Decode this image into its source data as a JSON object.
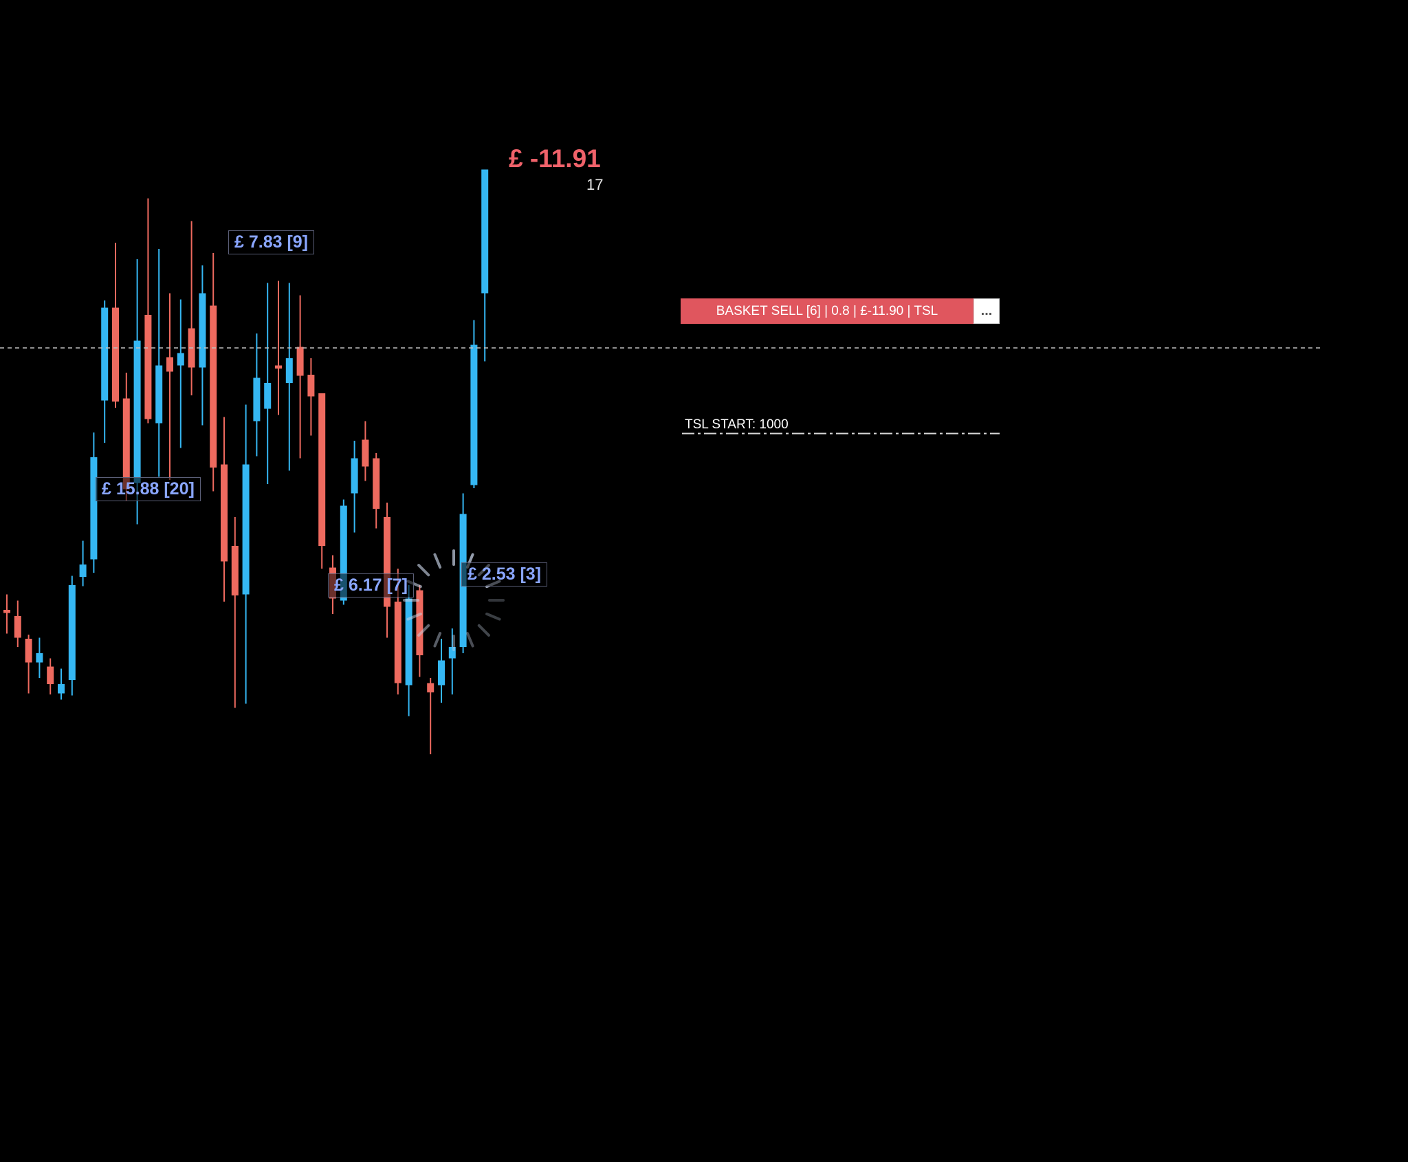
{
  "colors": {
    "background": "#000000",
    "bull": "#35b7f3",
    "bear": "#ee6a5f",
    "pnl_negative": "#f0626a",
    "basket_sell": "#e0565e",
    "profit_label_text": "#8aa6ff"
  },
  "pnl": {
    "value": "£ -11.91",
    "count": "17"
  },
  "basket": {
    "label": "BASKET SELL [6] | 0.8 | £-11.90 | TSL",
    "more": "..."
  },
  "tsl": {
    "label": "TSL START: 1000"
  },
  "profit_labels": [
    "£ 15.88 [20]",
    "£ 7.83 [9]",
    "£ 6.17 [7]",
    "£ 2.53 [3]"
  ],
  "loading_indicator": "spinner-icon",
  "chart_data": {
    "type": "candlestick",
    "y_axis_labels": "none",
    "candles": [
      {
        "o": 5.95,
        "c": 6.1,
        "h": 6.85,
        "l": 4.95,
        "dir": "bear"
      },
      {
        "o": 5.8,
        "c": 4.75,
        "h": 6.55,
        "l": 4.3,
        "dir": "bear"
      },
      {
        "o": 4.7,
        "c": 3.55,
        "h": 4.9,
        "l": 2.05,
        "dir": "bear"
      },
      {
        "o": 4.0,
        "c": 3.55,
        "h": 4.75,
        "l": 2.8,
        "dir": "bull"
      },
      {
        "o": 2.5,
        "c": 3.35,
        "h": 3.75,
        "l": 2.0,
        "dir": "bear"
      },
      {
        "o": 2.05,
        "c": 2.5,
        "h": 3.25,
        "l": 1.75,
        "dir": "bull"
      },
      {
        "o": 2.7,
        "c": 7.3,
        "h": 7.75,
        "l": 1.95,
        "dir": "bull"
      },
      {
        "o": 7.7,
        "c": 8.3,
        "h": 9.45,
        "l": 7.25,
        "dir": "bull"
      },
      {
        "o": 8.55,
        "c": 13.5,
        "h": 14.7,
        "l": 7.9,
        "dir": "bull"
      },
      {
        "o": 16.25,
        "c": 20.75,
        "h": 21.1,
        "l": 14.2,
        "dir": "bull"
      },
      {
        "o": 20.75,
        "c": 16.2,
        "h": 23.9,
        "l": 15.9,
        "dir": "bear"
      },
      {
        "o": 16.35,
        "c": 11.95,
        "h": 17.6,
        "l": 11.4,
        "dir": "bear"
      },
      {
        "o": 12.25,
        "c": 19.15,
        "h": 23.1,
        "l": 10.25,
        "dir": "bull"
      },
      {
        "o": 20.4,
        "c": 15.35,
        "h": 26.05,
        "l": 15.15,
        "dir": "bear"
      },
      {
        "o": 15.15,
        "c": 17.95,
        "h": 23.6,
        "l": 12.55,
        "dir": "bull"
      },
      {
        "o": 17.65,
        "c": 18.35,
        "h": 21.45,
        "l": 12.4,
        "dir": "bear"
      },
      {
        "o": 18.55,
        "c": 17.95,
        "h": 21.15,
        "l": 13.95,
        "dir": "bull"
      },
      {
        "o": 19.75,
        "c": 17.85,
        "h": 24.95,
        "l": 16.5,
        "dir": "bear"
      },
      {
        "o": 17.85,
        "c": 21.45,
        "h": 22.8,
        "l": 15.05,
        "dir": "bull"
      },
      {
        "o": 20.85,
        "c": 13.0,
        "h": 23.4,
        "l": 11.85,
        "dir": "bear"
      },
      {
        "o": 13.15,
        "c": 8.45,
        "h": 15.45,
        "l": 6.5,
        "dir": "bear"
      },
      {
        "o": 9.2,
        "c": 6.8,
        "h": 10.6,
        "l": 1.35,
        "dir": "bear"
      },
      {
        "o": 6.85,
        "c": 13.15,
        "h": 16.05,
        "l": 1.55,
        "dir": "bull"
      },
      {
        "o": 15.25,
        "c": 17.35,
        "h": 19.5,
        "l": 13.55,
        "dir": "bull"
      },
      {
        "o": 15.85,
        "c": 17.1,
        "h": 21.95,
        "l": 12.2,
        "dir": "bull"
      },
      {
        "o": 17.8,
        "c": 17.95,
        "h": 22.05,
        "l": 15.55,
        "dir": "bear"
      },
      {
        "o": 17.1,
        "c": 18.3,
        "h": 21.95,
        "l": 12.85,
        "dir": "bull"
      },
      {
        "o": 18.85,
        "c": 17.45,
        "h": 21.35,
        "l": 13.45,
        "dir": "bear"
      },
      {
        "o": 17.5,
        "c": 16.45,
        "h": 18.3,
        "l": 14.55,
        "dir": "bear"
      },
      {
        "o": 16.6,
        "c": 9.2,
        "h": 16.6,
        "l": 8.1,
        "dir": "bear"
      },
      {
        "o": 8.15,
        "c": 6.65,
        "h": 8.75,
        "l": 5.9,
        "dir": "bear"
      },
      {
        "o": 6.55,
        "c": 11.15,
        "h": 11.45,
        "l": 6.35,
        "dir": "bull"
      },
      {
        "o": 11.75,
        "c": 13.45,
        "h": 14.3,
        "l": 9.85,
        "dir": "bull"
      },
      {
        "o": 14.35,
        "c": 13.05,
        "h": 15.25,
        "l": 12.35,
        "dir": "bear"
      },
      {
        "o": 13.45,
        "c": 11.0,
        "h": 13.7,
        "l": 10.05,
        "dir": "bear"
      },
      {
        "o": 10.6,
        "c": 6.25,
        "h": 11.3,
        "l": 4.75,
        "dir": "bear"
      },
      {
        "o": 6.5,
        "c": 2.55,
        "h": 8.1,
        "l": 2.0,
        "dir": "bear"
      },
      {
        "o": 2.45,
        "c": 6.65,
        "h": 7.3,
        "l": 0.95,
        "dir": "bull"
      },
      {
        "o": 7.05,
        "c": 3.9,
        "h": 7.3,
        "l": 2.85,
        "dir": "bear"
      },
      {
        "o": 2.55,
        "c": 2.1,
        "h": 2.8,
        "l": -0.9,
        "dir": "bear"
      },
      {
        "o": 2.45,
        "c": 3.65,
        "h": 4.7,
        "l": 1.6,
        "dir": "bull"
      },
      {
        "o": 3.75,
        "c": 4.3,
        "h": 5.2,
        "l": 2.0,
        "dir": "bull"
      },
      {
        "o": 4.3,
        "c": 10.75,
        "h": 11.75,
        "l": 4.0,
        "dir": "bull"
      },
      {
        "o": 12.15,
        "c": 18.95,
        "h": 20.15,
        "l": 12.0,
        "dir": "bull"
      },
      {
        "o": 21.45,
        "c": 27.45,
        "h": 27.45,
        "l": 18.15,
        "dir": "bull"
      }
    ],
    "price_line": 18.8,
    "tsl_start": 14.65
  }
}
